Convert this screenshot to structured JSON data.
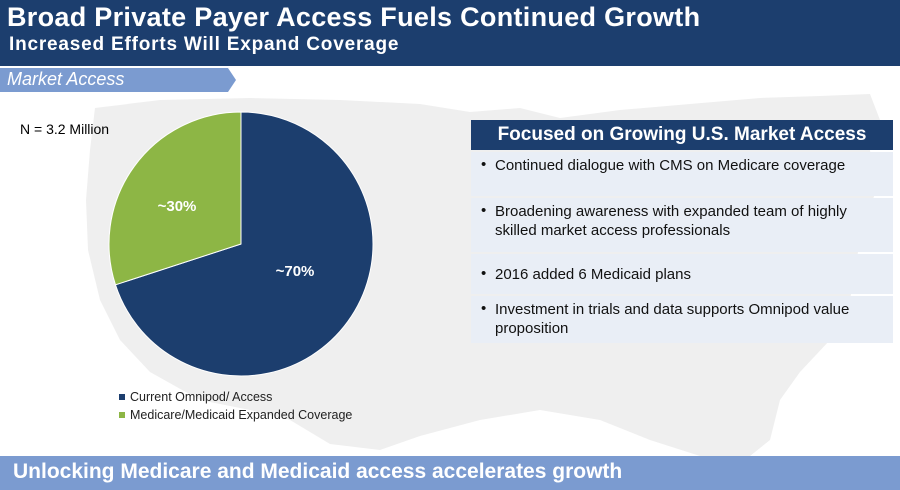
{
  "header": {
    "title": "Broad Private Payer Access Fuels Continued Growth",
    "subtitle": "Increased Efforts Will Expand Coverage"
  },
  "section_tab": {
    "label": "Market Access"
  },
  "colors": {
    "navy": "#1c3e6e",
    "green": "#8db645",
    "tab_blue": "#7b9bd0",
    "panel_bg": "#e9eef6",
    "map_gray": "#efefef"
  },
  "chart_data": {
    "type": "pie",
    "annotation": "N = 3.2 Million",
    "slices": [
      {
        "name": "Current Omnipod/ Access",
        "value": 70,
        "label": "~70%",
        "color": "#1c3e6e"
      },
      {
        "name": "Medicare/Medicaid Expanded Coverage",
        "value": 30,
        "label": "~30%",
        "color": "#8db645"
      }
    ],
    "legend_position": "bottom-left"
  },
  "panel": {
    "heading": "Focused on Growing U.S. Market Access",
    "bullet_char": "•",
    "items": [
      "Continued dialogue with CMS on Medicare coverage",
      "Broadening awareness with expanded team of highly skilled market access professionals",
      "2016 added 6 Medicaid plans",
      "Investment in trials and data supports Omnipod value proposition"
    ]
  },
  "banner": {
    "text": "Unlocking Medicare and Medicaid access accelerates growth"
  }
}
